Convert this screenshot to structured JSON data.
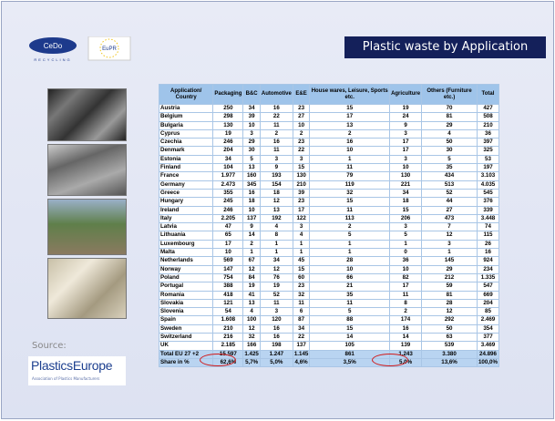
{
  "header": {
    "title": "Plastic waste by Application",
    "logo_left": "CeDo",
    "logo_left_sub": "RECYCLING",
    "logo_right": "EuPR"
  },
  "source": {
    "label": "Source:",
    "name": "PlasticsEurope",
    "tagline": "Association of Plastics Manufacturers"
  },
  "table": {
    "columns": [
      "Application/ Country",
      "Packaging",
      "B&C",
      "Automotive",
      "E&E",
      "House wares, Leisure, Sports etc.",
      "Agriculture",
      "Others (Furniture etc.)",
      "Total"
    ],
    "rows": [
      [
        "Austria",
        "250",
        "34",
        "16",
        "23",
        "15",
        "19",
        "70",
        "427"
      ],
      [
        "Belgium",
        "298",
        "39",
        "22",
        "27",
        "17",
        "24",
        "81",
        "508"
      ],
      [
        "Bulgaria",
        "130",
        "10",
        "11",
        "10",
        "13",
        "9",
        "29",
        "210"
      ],
      [
        "Cyprus",
        "19",
        "3",
        "2",
        "2",
        "2",
        "3",
        "4",
        "36"
      ],
      [
        "Czechia",
        "246",
        "29",
        "16",
        "23",
        "16",
        "17",
        "50",
        "397"
      ],
      [
        "Denmark",
        "204",
        "30",
        "11",
        "22",
        "10",
        "17",
        "30",
        "325"
      ],
      [
        "Estonia",
        "34",
        "5",
        "3",
        "3",
        "1",
        "3",
        "5",
        "53"
      ],
      [
        "Finland",
        "104",
        "13",
        "9",
        "15",
        "11",
        "10",
        "35",
        "197"
      ],
      [
        "France",
        "1.977",
        "160",
        "193",
        "130",
        "79",
        "130",
        "434",
        "3.103"
      ],
      [
        "Germany",
        "2.473",
        "345",
        "154",
        "210",
        "119",
        "221",
        "513",
        "4.035"
      ],
      [
        "Greece",
        "355",
        "16",
        "18",
        "39",
        "32",
        "34",
        "52",
        "545"
      ],
      [
        "Hungary",
        "245",
        "18",
        "12",
        "23",
        "15",
        "18",
        "44",
        "376"
      ],
      [
        "Ireland",
        "246",
        "10",
        "13",
        "17",
        "11",
        "15",
        "27",
        "339"
      ],
      [
        "Italy",
        "2.205",
        "137",
        "192",
        "122",
        "113",
        "206",
        "473",
        "3.448"
      ],
      [
        "Latvia",
        "47",
        "9",
        "4",
        "3",
        "2",
        "3",
        "7",
        "74"
      ],
      [
        "Lithuania",
        "65",
        "14",
        "8",
        "4",
        "5",
        "5",
        "12",
        "115"
      ],
      [
        "Luxembourg",
        "17",
        "2",
        "1",
        "1",
        "1",
        "1",
        "3",
        "26"
      ],
      [
        "Malta",
        "10",
        "1",
        "1",
        "1",
        "1",
        "0",
        "1",
        "16"
      ],
      [
        "Netherlands",
        "569",
        "67",
        "34",
        "45",
        "28",
        "36",
        "145",
        "924"
      ],
      [
        "Norway",
        "147",
        "12",
        "12",
        "15",
        "10",
        "10",
        "29",
        "234"
      ],
      [
        "Poland",
        "754",
        "84",
        "76",
        "60",
        "66",
        "82",
        "212",
        "1.335"
      ],
      [
        "Portugal",
        "388",
        "19",
        "19",
        "23",
        "21",
        "17",
        "59",
        "547"
      ],
      [
        "Romania",
        "418",
        "41",
        "52",
        "32",
        "35",
        "11",
        "81",
        "669"
      ],
      [
        "Slovakia",
        "121",
        "13",
        "11",
        "11",
        "11",
        "8",
        "28",
        "204"
      ],
      [
        "Slovenia",
        "54",
        "4",
        "3",
        "6",
        "5",
        "2",
        "12",
        "85"
      ],
      [
        "Spain",
        "1.608",
        "100",
        "120",
        "87",
        "88",
        "174",
        "292",
        "2.469"
      ],
      [
        "Sweden",
        "210",
        "12",
        "16",
        "34",
        "15",
        "16",
        "50",
        "354"
      ],
      [
        "Switzerland",
        "216",
        "32",
        "16",
        "22",
        "14",
        "14",
        "63",
        "377"
      ],
      [
        "UK",
        "2.185",
        "166",
        "198",
        "137",
        "105",
        "139",
        "539",
        "3.469"
      ],
      [
        "Total EU 27 +2",
        "15.597",
        "1.425",
        "1.247",
        "1.145",
        "861",
        "1.243",
        "3.380",
        "24.896"
      ],
      [
        "Share in %",
        "62,6%",
        "5,7%",
        "5,0%",
        "4,6%",
        "3,5%",
        "5,0%",
        "13,6%",
        "100,0%"
      ]
    ]
  }
}
